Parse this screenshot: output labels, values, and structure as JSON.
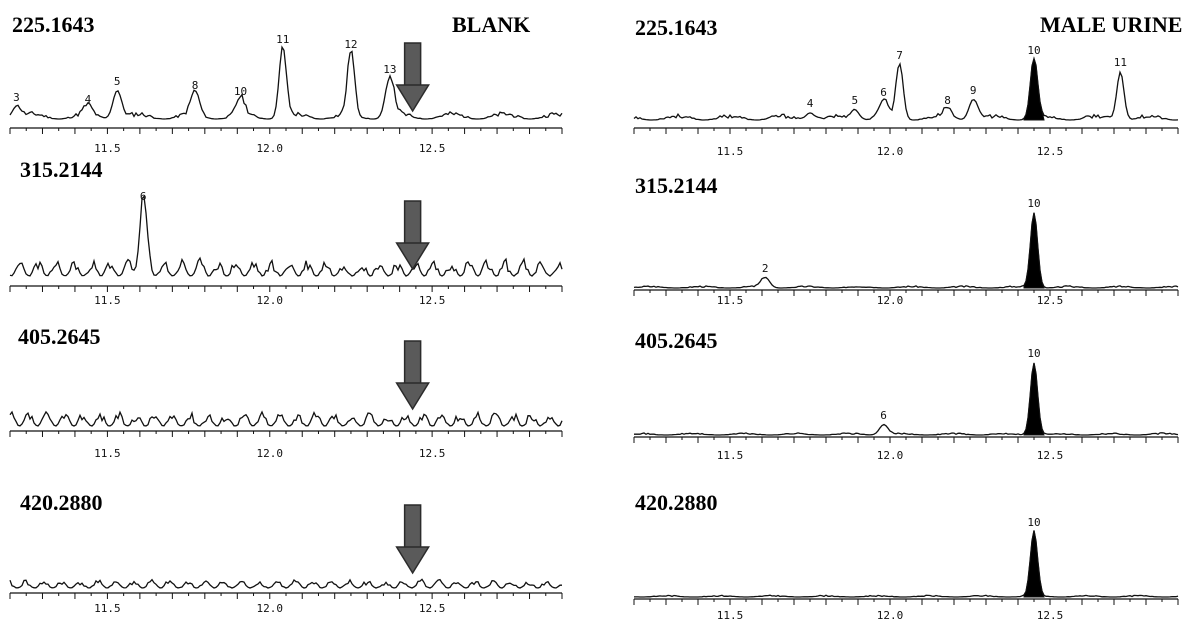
{
  "panel_headings": {
    "left": "BLANK",
    "right": "MALE URINE"
  },
  "colors": {
    "trace": "#111111",
    "arrow_fill": "#5a5a5a",
    "arrow_dark": "#2b2b2b",
    "peak_fill": "#000000"
  },
  "chart_data": [
    {
      "type": "line",
      "panel": "BLANK",
      "title": "225.1643",
      "xlim": [
        11.2,
        12.9
      ],
      "x_ticks": [
        "11.5",
        "12.0",
        "12.5"
      ],
      "arrow_at_rt": 12.44,
      "peak_labels": [
        {
          "label": "3",
          "rt": 11.22
        },
        {
          "label": "4",
          "rt": 11.44
        },
        {
          "label": "5",
          "rt": 11.53
        },
        {
          "label": "8",
          "rt": 11.77
        },
        {
          "label": "10",
          "rt": 11.91
        },
        {
          "label": "11",
          "rt": 12.04
        },
        {
          "label": "12",
          "rt": 12.25
        },
        {
          "label": "13",
          "rt": 12.37
        }
      ]
    },
    {
      "type": "line",
      "panel": "BLANK",
      "title": "315.2144",
      "xlim": [
        11.2,
        12.9
      ],
      "x_ticks": [
        "11.5",
        "12.0",
        "12.5"
      ],
      "arrow_at_rt": 12.44,
      "peak_labels": [
        {
          "label": "6",
          "rt": 11.61
        }
      ]
    },
    {
      "type": "line",
      "panel": "BLANK",
      "title": "405.2645",
      "xlim": [
        11.2,
        12.9
      ],
      "x_ticks": [
        "11.5",
        "12.0",
        "12.5"
      ],
      "arrow_at_rt": 12.44,
      "peak_labels": []
    },
    {
      "type": "line",
      "panel": "BLANK",
      "title": "420.2880",
      "xlim": [
        11.2,
        12.9
      ],
      "x_ticks": [
        "11.5",
        "12.0",
        "12.5"
      ],
      "arrow_at_rt": 12.44,
      "peak_labels": []
    },
    {
      "type": "line",
      "panel": "MALE URINE",
      "title": "225.1643",
      "xlim": [
        11.2,
        12.9
      ],
      "x_ticks": [
        "11.5",
        "12.0",
        "12.5"
      ],
      "filled_peak_rt": 12.45,
      "peak_labels": [
        {
          "label": "4",
          "rt": 11.75
        },
        {
          "label": "5",
          "rt": 11.89
        },
        {
          "label": "6",
          "rt": 11.98
        },
        {
          "label": "7",
          "rt": 12.03
        },
        {
          "label": "8",
          "rt": 12.18
        },
        {
          "label": "9",
          "rt": 12.26
        },
        {
          "label": "10",
          "rt": 12.45
        },
        {
          "label": "11",
          "rt": 12.72
        }
      ]
    },
    {
      "type": "line",
      "panel": "MALE URINE",
      "title": "315.2144",
      "xlim": [
        11.2,
        12.9
      ],
      "x_ticks": [
        "11.5",
        "12.0",
        "12.5"
      ],
      "filled_peak_rt": 12.45,
      "peak_labels": [
        {
          "label": "2",
          "rt": 11.61
        },
        {
          "label": "10",
          "rt": 12.45
        }
      ]
    },
    {
      "type": "line",
      "panel": "MALE URINE",
      "title": "405.2645",
      "xlim": [
        11.2,
        12.9
      ],
      "x_ticks": [
        "11.5",
        "12.0",
        "12.5"
      ],
      "filled_peak_rt": 12.45,
      "peak_labels": [
        {
          "label": "6",
          "rt": 11.98
        },
        {
          "label": "10",
          "rt": 12.45
        }
      ]
    },
    {
      "type": "line",
      "panel": "MALE URINE",
      "title": "420.2880",
      "xlim": [
        11.2,
        12.9
      ],
      "x_ticks": [
        "11.5",
        "12.0",
        "12.5"
      ],
      "filled_peak_rt": 12.45,
      "peak_labels": [
        {
          "label": "10",
          "rt": 12.45
        }
      ]
    }
  ]
}
